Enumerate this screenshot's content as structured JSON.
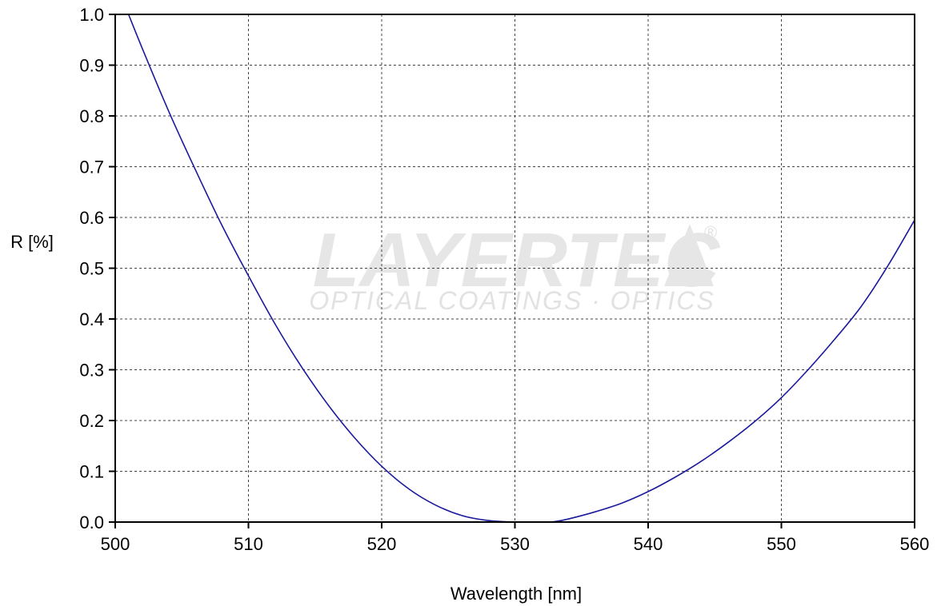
{
  "chart_data": {
    "type": "line",
    "title": "",
    "xlabel": "Wavelength [nm]",
    "ylabel": "R [%]",
    "xlim": [
      500,
      560
    ],
    "ylim": [
      0.0,
      1.0
    ],
    "x_ticks": [
      "500",
      "510",
      "520",
      "530",
      "540",
      "550",
      "560"
    ],
    "y_ticks": [
      "0.0",
      "0.1",
      "0.2",
      "0.3",
      "0.4",
      "0.5",
      "0.6",
      "0.7",
      "0.8",
      "0.9",
      "1.0"
    ],
    "grid": true,
    "line_color": "#1a1a9c",
    "series": [
      {
        "x": [
          501,
          502,
          504,
          506,
          508,
          510,
          512,
          514,
          516,
          518,
          520,
          522,
          524,
          526,
          528,
          530,
          531,
          532,
          533,
          534,
          536,
          538,
          540,
          542,
          544,
          546,
          548,
          550,
          552,
          554,
          556,
          558,
          560
        ],
        "values": [
          1.0,
          0.935,
          0.81,
          0.695,
          0.585,
          0.485,
          0.39,
          0.305,
          0.23,
          0.165,
          0.11,
          0.066,
          0.034,
          0.013,
          0.003,
          0.0,
          0.0,
          0.0,
          0.001,
          0.006,
          0.02,
          0.037,
          0.06,
          0.088,
          0.12,
          0.157,
          0.198,
          0.245,
          0.3,
          0.36,
          0.425,
          0.505,
          0.595
        ]
      }
    ]
  },
  "watermark": {
    "brand": "LAYERTEC",
    "registered": "®",
    "tagline": "OPTICAL COATINGS · OPTICS"
  }
}
